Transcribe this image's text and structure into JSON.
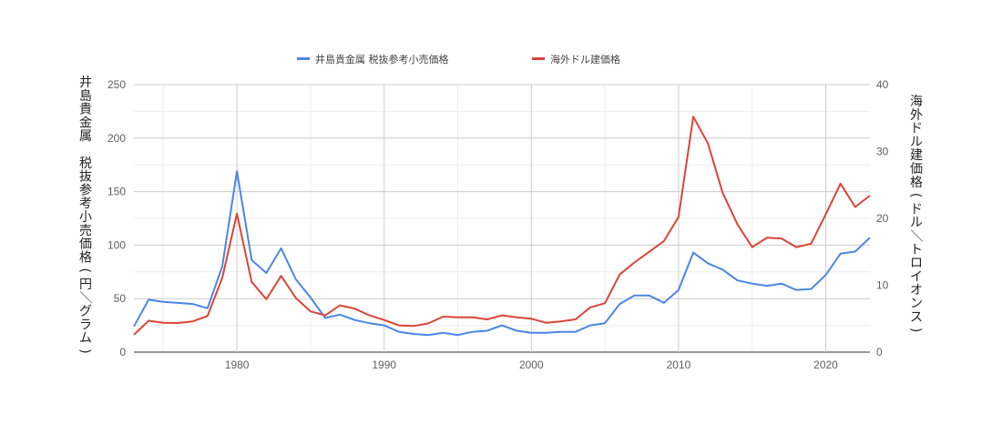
{
  "chart_data": {
    "type": "line",
    "xlim": [
      1973,
      2023
    ],
    "x_ticks": [
      "1980",
      "1990",
      "2000",
      "2010",
      "2020"
    ],
    "y_left": {
      "label": "井島貴金属 税抜参考小売価格(円／グラム)",
      "lim": [
        0,
        250
      ],
      "ticks": [
        "0",
        "50",
        "100",
        "150",
        "200",
        "250"
      ]
    },
    "y_right": {
      "label": "海外ドル建価格(ドル／トロイオンス)",
      "lim": [
        0,
        40
      ],
      "ticks": [
        "0",
        "10",
        "20",
        "30",
        "40"
      ]
    },
    "grid": true,
    "legend_position": "top",
    "series": [
      {
        "name": "井島貴金属 税抜参考小売価格",
        "axis": "left",
        "color": "#4a86e8",
        "x": [
          1973,
          1974,
          1975,
          1976,
          1977,
          1978,
          1979,
          1980,
          1981,
          1982,
          1983,
          1984,
          1985,
          1986,
          1987,
          1988,
          1989,
          1990,
          1991,
          1992,
          1993,
          1994,
          1995,
          1996,
          1997,
          1998,
          1999,
          2000,
          2001,
          2002,
          2003,
          2004,
          2005,
          2006,
          2007,
          2008,
          2009,
          2010,
          2011,
          2012,
          2013,
          2014,
          2015,
          2016,
          2017,
          2018,
          2019,
          2020,
          2021,
          2022,
          2023
        ],
        "values": [
          24,
          49,
          47,
          46,
          45,
          41,
          80,
          169,
          86,
          74,
          97,
          68,
          51,
          32,
          35,
          30,
          27,
          25,
          19,
          17,
          16,
          18,
          16,
          19,
          20,
          25,
          20,
          18,
          18,
          19,
          19,
          25,
          27,
          45,
          53,
          53,
          46,
          58,
          93,
          83,
          77,
          67,
          64,
          62,
          64,
          58,
          59,
          72,
          92,
          94,
          107
        ]
      },
      {
        "name": "海外ドル建価格",
        "axis": "right",
        "color": "#db4437",
        "x": [
          1973,
          1974,
          1975,
          1976,
          1977,
          1978,
          1979,
          1980,
          1981,
          1982,
          1983,
          1984,
          1985,
          1986,
          1987,
          1988,
          1989,
          1990,
          1991,
          1992,
          1993,
          1994,
          1995,
          1996,
          1997,
          1998,
          1999,
          2000,
          2001,
          2002,
          2003,
          2004,
          2005,
          2006,
          2007,
          2008,
          2009,
          2010,
          2011,
          2012,
          2013,
          2014,
          2015,
          2016,
          2017,
          2018,
          2019,
          2020,
          2021,
          2022,
          2023
        ],
        "values": [
          2.6,
          4.7,
          4.4,
          4.35,
          4.6,
          5.4,
          11.1,
          20.7,
          10.5,
          7.9,
          11.4,
          8.1,
          6.1,
          5.5,
          7.0,
          6.5,
          5.5,
          4.8,
          4.0,
          3.9,
          4.3,
          5.3,
          5.2,
          5.2,
          4.9,
          5.5,
          5.2,
          5.0,
          4.4,
          4.6,
          4.9,
          6.7,
          7.3,
          11.6,
          13.4,
          15.0,
          16.6,
          20.2,
          35.2,
          31.2,
          23.8,
          19.1,
          15.7,
          17.1,
          17.0,
          15.7,
          16.2,
          20.6,
          25.2,
          21.7,
          23.4
        ]
      }
    ]
  }
}
